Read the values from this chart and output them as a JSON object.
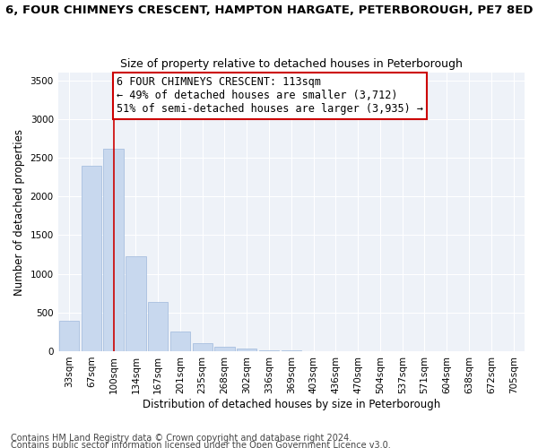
{
  "title": "6, FOUR CHIMNEYS CRESCENT, HAMPTON HARGATE, PETERBOROUGH, PE7 8ED",
  "subtitle": "Size of property relative to detached houses in Peterborough",
  "xlabel": "Distribution of detached houses by size in Peterborough",
  "ylabel": "Number of detached properties",
  "categories": [
    "33sqm",
    "67sqm",
    "100sqm",
    "134sqm",
    "167sqm",
    "201sqm",
    "235sqm",
    "268sqm",
    "302sqm",
    "336sqm",
    "369sqm",
    "403sqm",
    "436sqm",
    "470sqm",
    "504sqm",
    "537sqm",
    "571sqm",
    "604sqm",
    "638sqm",
    "672sqm",
    "705sqm"
  ],
  "values": [
    390,
    2400,
    2620,
    1230,
    640,
    250,
    100,
    55,
    35,
    15,
    10,
    5,
    3,
    2,
    2,
    2,
    1,
    1,
    1,
    1,
    1
  ],
  "bar_color": "#c8d8ee",
  "bar_edge_color": "#a8c0e0",
  "vline_x": 2,
  "vline_color": "#cc0000",
  "annotation_text": "6 FOUR CHIMNEYS CRESCENT: 113sqm\n← 49% of detached houses are smaller (3,712)\n51% of semi-detached houses are larger (3,935) →",
  "annotation_box_facecolor": "#ffffff",
  "annotation_box_edgecolor": "#cc0000",
  "ylim": [
    0,
    3600
  ],
  "yticks": [
    0,
    500,
    1000,
    1500,
    2000,
    2500,
    3000,
    3500
  ],
  "footnote1": "Contains HM Land Registry data © Crown copyright and database right 2024.",
  "footnote2": "Contains public sector information licensed under the Open Government Licence v3.0.",
  "title_fontsize": 9.5,
  "subtitle_fontsize": 9,
  "axis_label_fontsize": 8.5,
  "tick_fontsize": 7.5,
  "annotation_fontsize": 8.5,
  "footnote_fontsize": 7,
  "bg_color": "#eef2f8"
}
